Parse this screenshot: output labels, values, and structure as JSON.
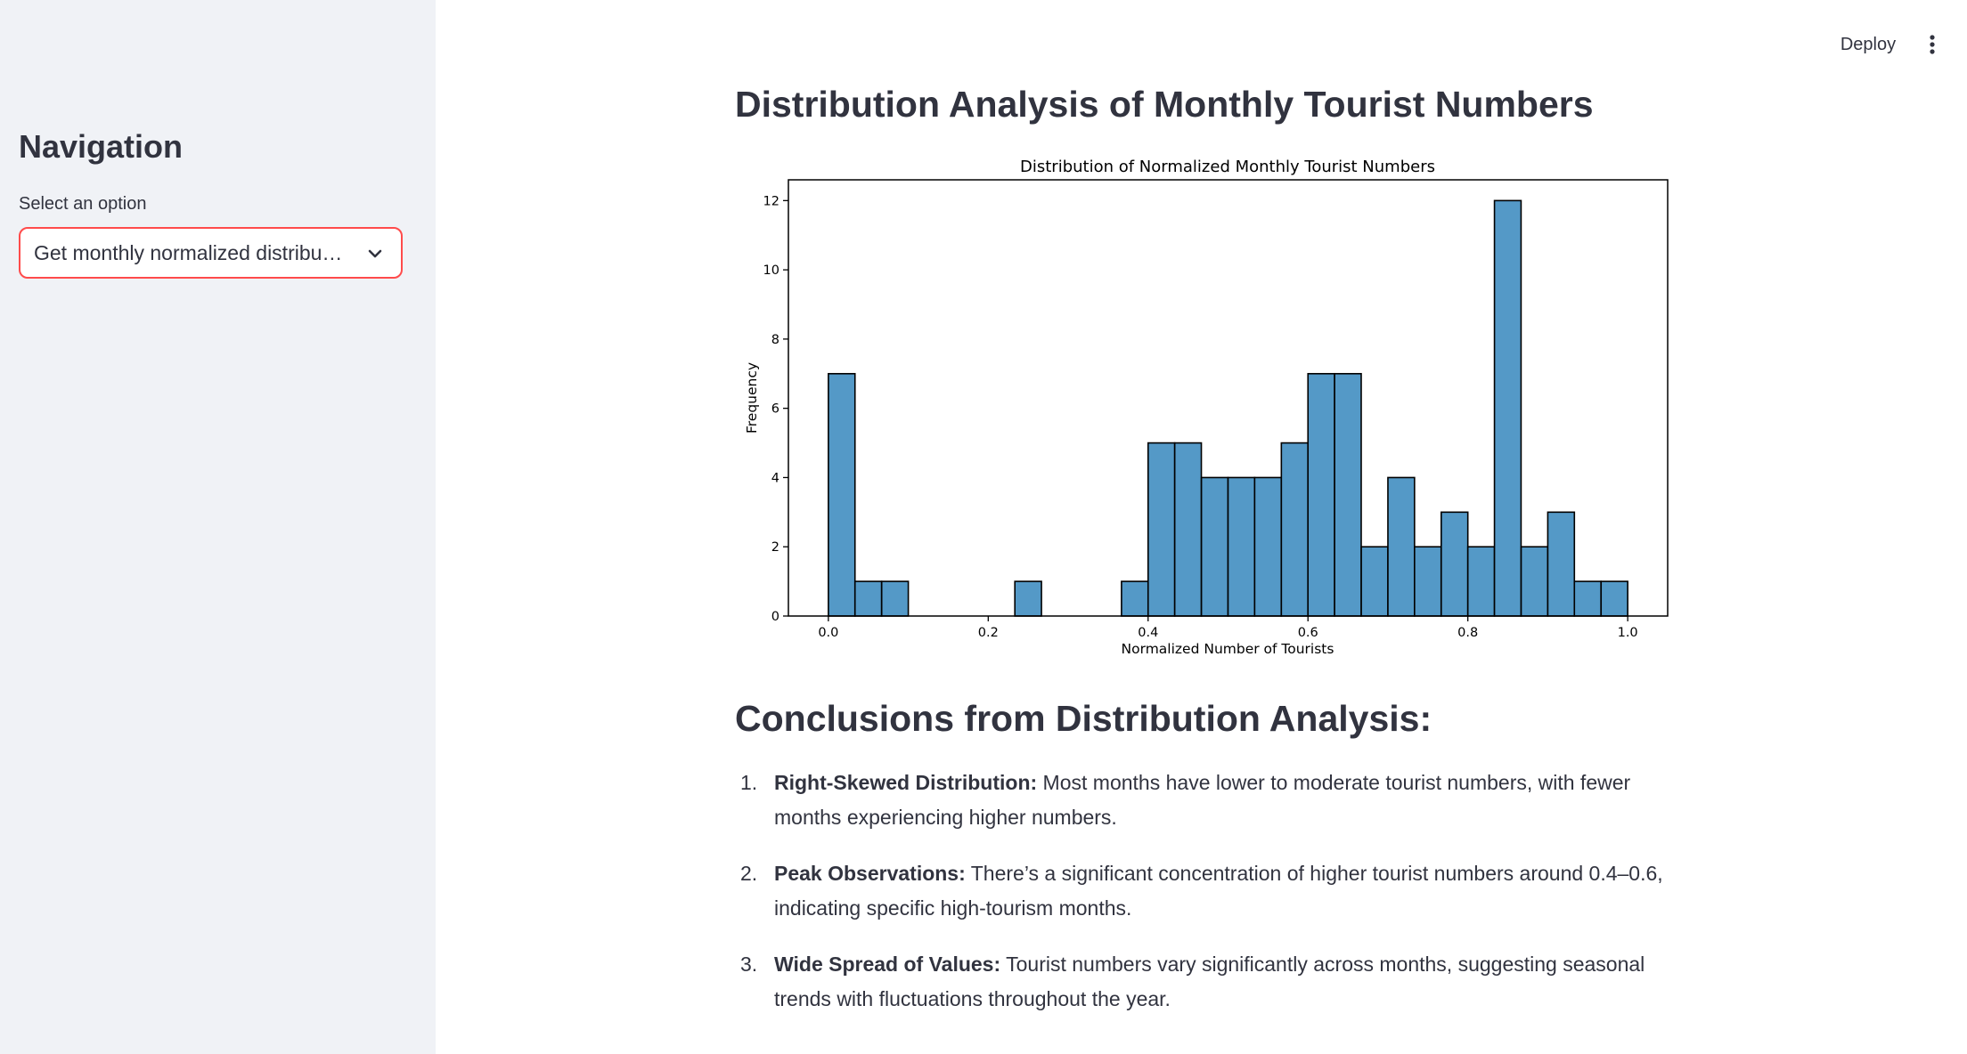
{
  "header": {
    "deploy_label": "Deploy",
    "menu_icon": "more-vertical-icon"
  },
  "sidebar": {
    "title": "Navigation",
    "select_label": "Select an option",
    "select_value": "Get monthly normalized distribution",
    "select_value_display": "Get monthly normalized distribu…",
    "chevron_icon": "chevron-down-icon",
    "accent_color": "#ff4b4b"
  },
  "main": {
    "title": "Distribution Analysis of Monthly Tourist Numbers",
    "conclusions_title": "Conclusions from Distribution Analysis:",
    "conclusions": [
      {
        "num": "1.",
        "lead": "Right-Skewed Distribution:",
        "text": " Most months have lower to moderate tourist numbers, with fewer months experiencing higher numbers."
      },
      {
        "num": "2.",
        "lead": "Peak Observations:",
        "text": " There’s a significant concentration of higher tourist numbers around 0.4–0.6, indicating specific high-tourism months."
      },
      {
        "num": "3.",
        "lead": "Wide Spread of Values:",
        "text": " Tourist numbers vary significantly across months, suggesting seasonal trends with fluctuations throughout the year."
      }
    ]
  },
  "chart_data": {
    "type": "bar",
    "title": "Distribution of Normalized Monthly Tourist Numbers",
    "xlabel": "Normalized Number of Tourists",
    "ylabel": "Frequency",
    "bin_width": 0.0333,
    "bins_start": [
      0.0,
      0.0333,
      0.0667,
      0.1,
      0.1333,
      0.1667,
      0.2,
      0.2333,
      0.2667,
      0.3,
      0.3333,
      0.3667,
      0.4,
      0.4333,
      0.4667,
      0.5,
      0.5333,
      0.5667,
      0.6,
      0.6333,
      0.6667,
      0.7,
      0.7333,
      0.7667,
      0.8,
      0.8333,
      0.8667,
      0.9,
      0.9333,
      0.9667
    ],
    "values": [
      7,
      1,
      1,
      0,
      0,
      0,
      0,
      1,
      0,
      0,
      0,
      1,
      5,
      5,
      4,
      4,
      4,
      5,
      7,
      7,
      2,
      4,
      2,
      3,
      2,
      12,
      2,
      3,
      1,
      1
    ],
    "xlim": [
      -0.05,
      1.05
    ],
    "ylim": [
      0,
      12.6
    ],
    "xticks": [
      "0.0",
      "0.2",
      "0.4",
      "0.6",
      "0.8",
      "1.0"
    ],
    "yticks": [
      "0",
      "2",
      "4",
      "6",
      "8",
      "10",
      "12"
    ],
    "bar_color": "#5499c7",
    "edge_color": "#000000",
    "grid": false
  }
}
